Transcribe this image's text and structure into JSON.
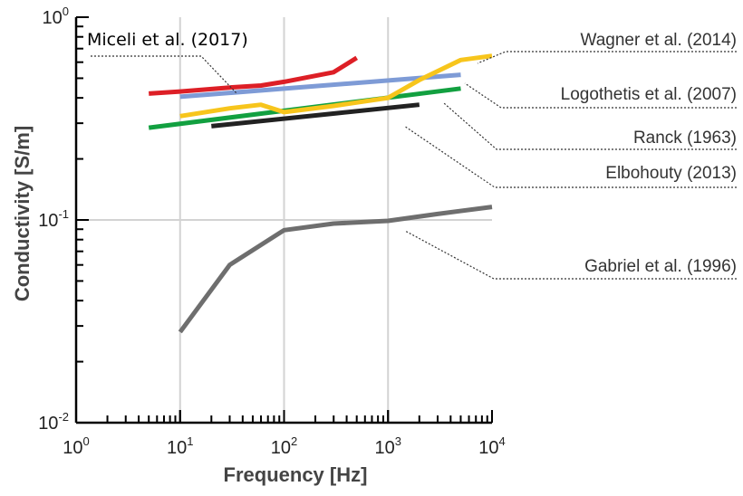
{
  "chart_data": {
    "type": "line",
    "xlabel": "Frequency [Hz]",
    "ylabel": "Conductivity [S/m]",
    "x_scale": "log",
    "y_scale": "log",
    "xlim": [
      1,
      10000
    ],
    "ylim": [
      0.01,
      1
    ],
    "grid": true,
    "x_ticks": [
      {
        "value": 1,
        "base": "10",
        "exp": "0"
      },
      {
        "value": 10,
        "base": "10",
        "exp": "1"
      },
      {
        "value": 100,
        "base": "10",
        "exp": "2"
      },
      {
        "value": 1000,
        "base": "10",
        "exp": "3"
      },
      {
        "value": 10000,
        "base": "10",
        "exp": "4"
      }
    ],
    "y_ticks": [
      {
        "value": 0.01,
        "base": "10",
        "exp": "-2"
      },
      {
        "value": 0.1,
        "base": "10",
        "exp": "-1"
      },
      {
        "value": 1,
        "base": "10",
        "exp": "0"
      }
    ],
    "series": [
      {
        "name": "Gabriel et al. (1996)",
        "color": "#6e6e6e",
        "x": [
          10,
          30,
          100,
          300,
          1000,
          3000,
          10000
        ],
        "y": [
          0.028,
          0.06,
          0.089,
          0.096,
          0.099,
          0.107,
          0.116
        ]
      },
      {
        "name": "Elbohouty (2013)",
        "color": "#222222",
        "x": [
          20,
          2000
        ],
        "y": [
          0.29,
          0.37
        ]
      },
      {
        "name": "Ranck (1963)",
        "color": "#12a040",
        "x": [
          5,
          5000
        ],
        "y": [
          0.285,
          0.445
        ]
      },
      {
        "name": "Logothetis et al. (2007)",
        "color": "#7e9bd6",
        "x": [
          10,
          5000
        ],
        "y": [
          0.405,
          0.52
        ]
      },
      {
        "name": "Wagner et al. (2014)",
        "color": "#f7c51c",
        "x": [
          10,
          30,
          60,
          100,
          300,
          1000,
          2000,
          5000,
          10000
        ],
        "y": [
          0.325,
          0.355,
          0.37,
          0.34,
          0.365,
          0.4,
          0.49,
          0.615,
          0.645
        ]
      },
      {
        "name": "Miceli et al. (2017)",
        "color": "#dd1f26",
        "x": [
          5,
          10,
          30,
          60,
          100,
          300,
          500
        ],
        "y": [
          0.42,
          0.43,
          0.45,
          0.46,
          0.48,
          0.535,
          0.63
        ]
      }
    ],
    "annotations": [
      {
        "text": "Miceli et al. (2017)",
        "series": "Miceli et al. (2017)"
      },
      {
        "text": "Wagner et al. (2014)",
        "series": "Wagner et al. (2014)"
      },
      {
        "text": "Logothetis et al. (2007)",
        "series": "Logothetis et al. (2007)"
      },
      {
        "text": "Ranck (1963)",
        "series": "Ranck (1963)"
      },
      {
        "text": "Elbohouty (2013)",
        "series": "Elbohouty (2013)"
      },
      {
        "text": "Gabriel et al. (1996)",
        "series": "Gabriel et al. (1996)"
      }
    ]
  }
}
